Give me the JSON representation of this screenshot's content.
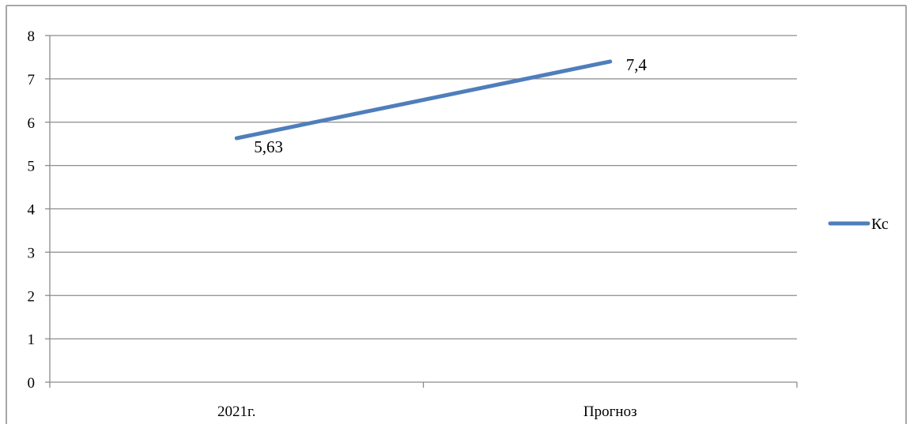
{
  "chart_data": {
    "type": "line",
    "categories": [
      "2021г.",
      "Прогноз"
    ],
    "series": [
      {
        "name": "Кс",
        "values": [
          5.63,
          7.4
        ],
        "labels": [
          "5,63",
          "7,4"
        ],
        "color": "#4F7EBB"
      }
    ],
    "ylim": [
      0,
      8
    ],
    "yticks": [
      "0",
      "1",
      "2",
      "3",
      "4",
      "5",
      "6",
      "7",
      "8"
    ],
    "grid": true,
    "legend": "right",
    "title": "",
    "xlabel": "",
    "ylabel": ""
  }
}
